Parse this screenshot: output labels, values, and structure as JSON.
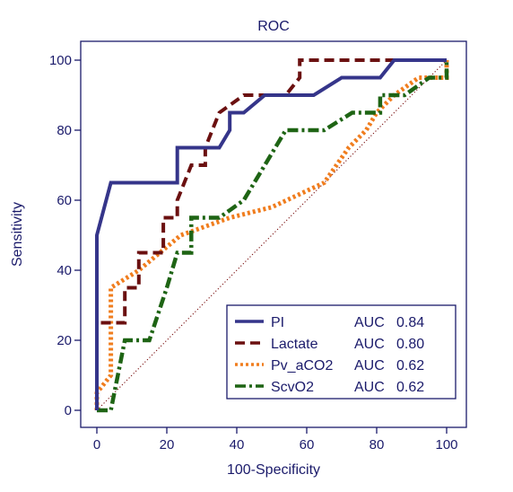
{
  "chart_data": {
    "type": "line",
    "title": "ROC",
    "xlabel": "100-Specificity",
    "ylabel": "Sensitivity",
    "xlim": [
      0,
      100
    ],
    "ylim": [
      0,
      100
    ],
    "xticks": [
      0,
      20,
      40,
      60,
      80,
      100
    ],
    "yticks": [
      0,
      20,
      40,
      60,
      80,
      100
    ],
    "grid": false,
    "legend_position": "bottom-right",
    "reference_line": {
      "from": [
        0,
        0
      ],
      "to": [
        100,
        100
      ],
      "color": "#7a1010"
    },
    "series": [
      {
        "name": "PI",
        "auc_label": "AUC",
        "auc": "0.84",
        "color": "#35358a",
        "style": "solid",
        "points": [
          [
            0,
            0
          ],
          [
            0,
            50
          ],
          [
            4,
            65
          ],
          [
            8,
            65
          ],
          [
            23,
            65
          ],
          [
            23,
            75
          ],
          [
            35,
            75
          ],
          [
            38,
            80
          ],
          [
            38,
            85
          ],
          [
            42,
            85
          ],
          [
            48,
            90
          ],
          [
            62,
            90
          ],
          [
            70,
            95
          ],
          [
            81,
            95
          ],
          [
            85,
            100
          ],
          [
            100,
            100
          ]
        ]
      },
      {
        "name": "Lactate",
        "auc_label": "AUC",
        "auc": "0.80",
        "color": "#6b1010",
        "style": "dashed",
        "points": [
          [
            0,
            0
          ],
          [
            0,
            25
          ],
          [
            8,
            25
          ],
          [
            8,
            35
          ],
          [
            12,
            35
          ],
          [
            12,
            45
          ],
          [
            19,
            45
          ],
          [
            19,
            55
          ],
          [
            23,
            55
          ],
          [
            23,
            60
          ],
          [
            27,
            70
          ],
          [
            31,
            70
          ],
          [
            31,
            75
          ],
          [
            35,
            85
          ],
          [
            42,
            90
          ],
          [
            54,
            90
          ],
          [
            58,
            95
          ],
          [
            58,
            100
          ],
          [
            100,
            100
          ]
        ]
      },
      {
        "name": "Pv_aCO2",
        "auc_label": "AUC",
        "auc": "0.62",
        "color": "#f07d1e",
        "style": "dotted",
        "points": [
          [
            0,
            0
          ],
          [
            0,
            5
          ],
          [
            4,
            10
          ],
          [
            4,
            35
          ],
          [
            12,
            40
          ],
          [
            24,
            50
          ],
          [
            38,
            55
          ],
          [
            50,
            58
          ],
          [
            65,
            65
          ],
          [
            72,
            75
          ],
          [
            77,
            80
          ],
          [
            80,
            85
          ],
          [
            85,
            90
          ],
          [
            92,
            95
          ],
          [
            100,
            95
          ],
          [
            100,
            100
          ]
        ]
      },
      {
        "name": "ScvO2",
        "auc_label": "AUC",
        "auc": "0.62",
        "color": "#1e6414",
        "style": "dashdot",
        "points": [
          [
            0,
            0
          ],
          [
            4,
            0
          ],
          [
            8,
            20
          ],
          [
            15,
            20
          ],
          [
            20,
            35
          ],
          [
            23,
            45
          ],
          [
            27,
            45
          ],
          [
            27,
            55
          ],
          [
            35,
            55
          ],
          [
            42,
            60
          ],
          [
            54,
            80
          ],
          [
            65,
            80
          ],
          [
            73,
            85
          ],
          [
            81,
            85
          ],
          [
            81,
            90
          ],
          [
            88,
            90
          ],
          [
            95,
            95
          ],
          [
            100,
            95
          ],
          [
            100,
            100
          ]
        ]
      }
    ]
  }
}
